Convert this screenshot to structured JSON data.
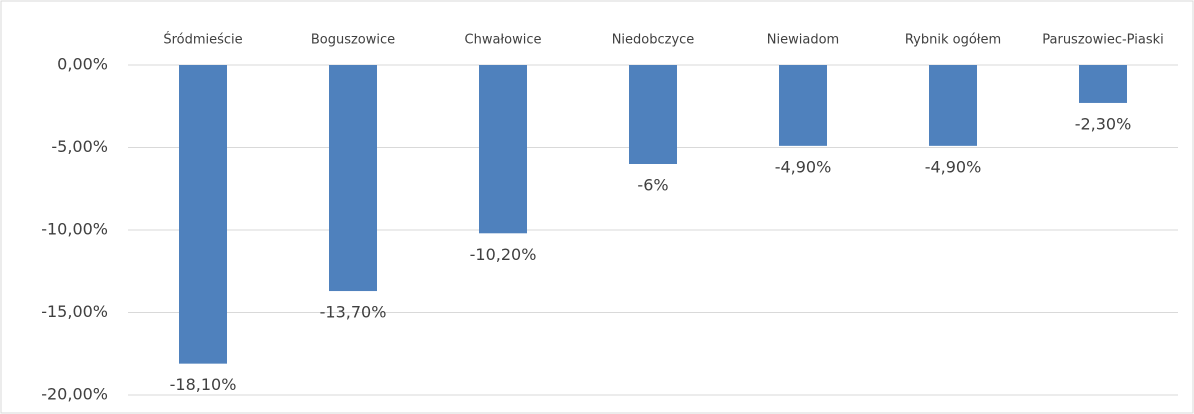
{
  "chart_data": {
    "type": "bar",
    "categories": [
      "Śródmieście",
      "Boguszowice",
      "Chwałowice",
      "Niedobczyce",
      "Niewiadom",
      "Rybnik ogółem",
      "Paruszowiec-Piaski"
    ],
    "values": [
      -18.1,
      -13.7,
      -10.2,
      -6,
      -4.9,
      -4.9,
      -2.3
    ],
    "value_labels": [
      "-18,10%",
      "-13,70%",
      "-10,20%",
      "-6%",
      "-4,90%",
      "-4,90%",
      "-2,30%"
    ],
    "color": "#4f81bd",
    "ylim": [
      -20,
      0
    ],
    "yticks": [
      {
        "value": 0,
        "label": "0,00%"
      },
      {
        "value": -5,
        "label": "-5,00%"
      },
      {
        "value": -10,
        "label": "-10,00%"
      },
      {
        "value": -15,
        "label": "-15,00%"
      },
      {
        "value": -20,
        "label": "-20,00%"
      }
    ],
    "grid": true
  }
}
